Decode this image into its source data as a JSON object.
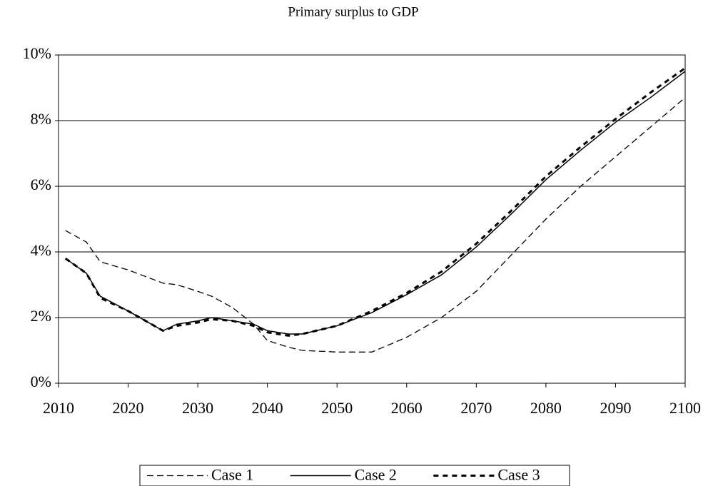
{
  "chart_data": {
    "type": "line",
    "title": "Primary surplus to GDP",
    "x": [
      2011,
      2014,
      2016,
      2020,
      2025,
      2027,
      2030,
      2032,
      2035,
      2038,
      2040,
      2043,
      2045,
      2050,
      2055,
      2060,
      2065,
      2070,
      2075,
      2080,
      2085,
      2090,
      2095,
      2100
    ],
    "series": [
      {
        "name": "Case 1",
        "color": "#000000",
        "style": "dashed",
        "values": [
          4.65,
          4.3,
          3.7,
          3.45,
          3.05,
          3.0,
          2.8,
          2.65,
          2.3,
          1.8,
          1.3,
          1.1,
          1.0,
          0.95,
          0.95,
          1.4,
          2.0,
          2.8,
          3.9,
          5.0,
          6.0,
          6.9,
          7.8,
          8.7
        ]
      },
      {
        "name": "Case 2",
        "color": "#000000",
        "style": "solid",
        "values": [
          3.8,
          3.35,
          2.65,
          2.2,
          1.6,
          1.8,
          1.9,
          2.0,
          1.9,
          1.8,
          1.6,
          1.5,
          1.5,
          1.75,
          2.15,
          2.7,
          3.3,
          4.15,
          5.15,
          6.2,
          7.1,
          7.95,
          8.7,
          9.5
        ]
      },
      {
        "name": "Case 3",
        "color": "#000000",
        "style": "bold-dashed",
        "values": [
          3.8,
          3.35,
          2.6,
          2.2,
          1.6,
          1.75,
          1.85,
          1.95,
          1.9,
          1.75,
          1.55,
          1.45,
          1.5,
          1.75,
          2.2,
          2.75,
          3.4,
          4.25,
          5.25,
          6.3,
          7.2,
          8.05,
          8.85,
          9.6
        ]
      }
    ],
    "xlim": [
      2010,
      2100
    ],
    "xticks": [
      2010,
      2020,
      2030,
      2040,
      2050,
      2060,
      2070,
      2080,
      2090,
      2100
    ],
    "ylim": [
      0,
      10
    ],
    "yticks": [
      {
        "value": 0,
        "label": "0%"
      },
      {
        "value": 2,
        "label": "2%"
      },
      {
        "value": 4,
        "label": "4%"
      },
      {
        "value": 6,
        "label": "6%"
      },
      {
        "value": 8,
        "label": "8%"
      },
      {
        "value": 10,
        "label": "10%"
      }
    ],
    "grid": true,
    "legend": "bottom"
  }
}
